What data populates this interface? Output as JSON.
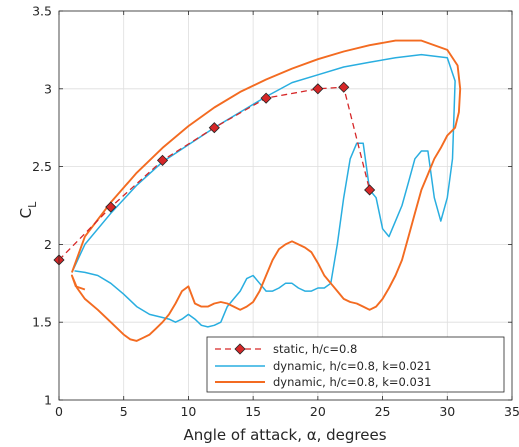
{
  "chart_data": {
    "type": "line",
    "xlabel": "Angle of attack, α, degrees",
    "ylabel": "C",
    "ylabel_sub": "L",
    "xlim": [
      0,
      35
    ],
    "ylim": [
      1,
      3.5
    ],
    "x_ticks": [
      0,
      5,
      10,
      15,
      20,
      25,
      30,
      35
    ],
    "y_ticks": [
      1,
      1.5,
      2,
      2.5,
      3,
      3.5
    ],
    "x_tick_labels": [
      "0",
      "5",
      "10",
      "15",
      "20",
      "25",
      "30",
      "35"
    ],
    "y_tick_labels": [
      "1",
      "1.5",
      "2",
      "2.5",
      "3",
      "3.5"
    ],
    "grid": true,
    "legend_position": "bottom-right",
    "series": [
      {
        "name": "static, h/c=0.8",
        "color": "#d62728",
        "marker_fill": "#d62728",
        "style": "dashed-diamond",
        "x": [
          0,
          4,
          8,
          12,
          16,
          20,
          22,
          24
        ],
        "y": [
          1.9,
          2.24,
          2.54,
          2.75,
          2.94,
          3.0,
          3.01,
          2.35
        ]
      },
      {
        "name": "dynamic, h/c=0.8, k=0.021",
        "color": "#29aee0",
        "style": "solid",
        "x": [
          1,
          2,
          4,
          6,
          8,
          10,
          12,
          14,
          16,
          18,
          20,
          22,
          24,
          26,
          28,
          30,
          30.6,
          30.4,
          30,
          29.5,
          29,
          28.5,
          28,
          27.5,
          27,
          26.5,
          26,
          25.5,
          25,
          24.5,
          24,
          23.5,
          23,
          22.5,
          22,
          21.5,
          21,
          20.5,
          20,
          19.5,
          19,
          18.5,
          18,
          17.5,
          17,
          16.5,
          16,
          15.5,
          15,
          14.5,
          14,
          13.5,
          13,
          12.5,
          12,
          11.5,
          11,
          10.5,
          10,
          9.5,
          9,
          8.5,
          8,
          7,
          6,
          5,
          4,
          3,
          2,
          1.2
        ],
        "y": [
          1.82,
          2.0,
          2.2,
          2.38,
          2.53,
          2.64,
          2.75,
          2.85,
          2.95,
          3.04,
          3.09,
          3.14,
          3.17,
          3.2,
          3.22,
          3.2,
          3.05,
          2.55,
          2.3,
          2.15,
          2.3,
          2.6,
          2.6,
          2.55,
          2.4,
          2.25,
          2.15,
          2.05,
          2.1,
          2.3,
          2.35,
          2.65,
          2.65,
          2.55,
          2.3,
          2.0,
          1.75,
          1.72,
          1.72,
          1.7,
          1.7,
          1.72,
          1.75,
          1.75,
          1.72,
          1.7,
          1.7,
          1.75,
          1.8,
          1.78,
          1.7,
          1.65,
          1.6,
          1.5,
          1.48,
          1.47,
          1.48,
          1.52,
          1.55,
          1.52,
          1.5,
          1.52,
          1.53,
          1.55,
          1.6,
          1.68,
          1.75,
          1.8,
          1.82,
          1.83
        ]
      },
      {
        "name": "dynamic, h/c=0.8, k=0.031",
        "color": "#f36b21",
        "style": "solid",
        "x": [
          1,
          2,
          4,
          6,
          8,
          10,
          12,
          14,
          16,
          18,
          20,
          22,
          24,
          26,
          28,
          30,
          30.8,
          31,
          30.9,
          30.6,
          30,
          29.5,
          29,
          28.5,
          28,
          27.5,
          27,
          26.5,
          26,
          25.5,
          25,
          24.5,
          24,
          23.5,
          23,
          22.5,
          22,
          21.5,
          21,
          20.5,
          20,
          19.5,
          19,
          18.5,
          18,
          17.5,
          17,
          16.5,
          16,
          15.5,
          15,
          14.5,
          14,
          13.5,
          13,
          12.5,
          12,
          11.5,
          11,
          10.5,
          10,
          9.5,
          9,
          8.5,
          8,
          7.5,
          7,
          6.5,
          6,
          5.5,
          5,
          4,
          3,
          2,
          1.4,
          1,
          1.3,
          2
        ],
        "y": [
          1.82,
          2.05,
          2.27,
          2.46,
          2.62,
          2.76,
          2.88,
          2.98,
          3.06,
          3.13,
          3.19,
          3.24,
          3.28,
          3.31,
          3.31,
          3.25,
          3.15,
          3.0,
          2.85,
          2.75,
          2.7,
          2.62,
          2.55,
          2.45,
          2.35,
          2.2,
          2.05,
          1.9,
          1.8,
          1.72,
          1.65,
          1.6,
          1.58,
          1.6,
          1.62,
          1.63,
          1.65,
          1.7,
          1.75,
          1.8,
          1.88,
          1.95,
          1.98,
          2.0,
          2.02,
          2.0,
          1.97,
          1.9,
          1.8,
          1.7,
          1.63,
          1.6,
          1.58,
          1.6,
          1.62,
          1.63,
          1.62,
          1.6,
          1.6,
          1.62,
          1.73,
          1.7,
          1.62,
          1.55,
          1.5,
          1.46,
          1.42,
          1.4,
          1.38,
          1.39,
          1.42,
          1.5,
          1.58,
          1.65,
          1.72,
          1.8,
          1.73,
          1.71
        ]
      }
    ]
  }
}
